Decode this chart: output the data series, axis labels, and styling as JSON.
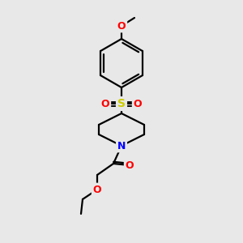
{
  "bg_color": "#e8e8e8",
  "bond_color": "#000000",
  "lw": 1.6,
  "atom_colors": {
    "O": "#ff0000",
    "S": "#cccc00",
    "N": "#0000ff"
  },
  "fs": 9,
  "fig_size": [
    3.0,
    3.0
  ],
  "dpi": 100
}
